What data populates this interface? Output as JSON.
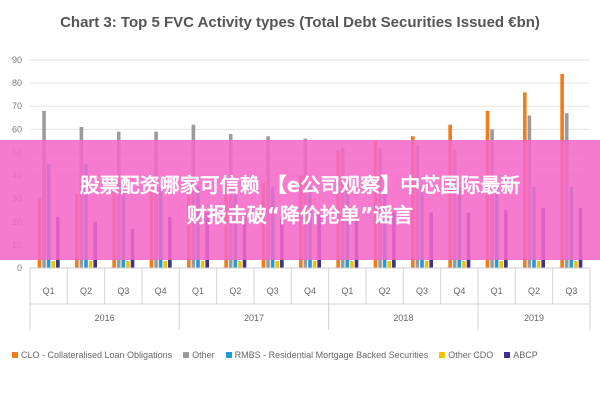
{
  "chart_data": {
    "type": "bar",
    "title": "Chart 3: Top 5 FVC Activity types (Total Debt Securities Issued €bn)",
    "ylim": [
      0,
      90
    ],
    "yticks": [
      0,
      10,
      20,
      30,
      40,
      50,
      60,
      70,
      80,
      90
    ],
    "grid": true,
    "legend_position": "bottom",
    "categories": [
      "Q1",
      "Q2",
      "Q3",
      "Q4",
      "Q1",
      "Q2",
      "Q3",
      "Q4",
      "Q1",
      "Q2",
      "Q3",
      "Q4",
      "Q1",
      "Q2",
      "Q3"
    ],
    "year_groups": [
      {
        "label": "2016",
        "start": 0,
        "count": 4
      },
      {
        "label": "2017",
        "start": 4,
        "count": 4
      },
      {
        "label": "2018",
        "start": 8,
        "count": 4
      },
      {
        "label": "2019",
        "start": 12,
        "count": 3
      }
    ],
    "series": [
      {
        "name": "CLO - Collateralised Loan Obligations",
        "color": "#f07d1a",
        "values": [
          30,
          32,
          33,
          35,
          34,
          36,
          37,
          40,
          51,
          55,
          57,
          62,
          68,
          76,
          84
        ]
      },
      {
        "name": "Other",
        "color": "#9b9b9b",
        "values": [
          68,
          61,
          59,
          59,
          62,
          58,
          57,
          56,
          52,
          52,
          53,
          51,
          60,
          66,
          67
        ]
      },
      {
        "name": "RMBS - Residential Mortgage Backed Securities",
        "color": "#1f9bd6",
        "values": [
          45,
          45,
          35,
          35,
          35,
          35,
          35,
          35,
          35,
          35,
          35,
          35,
          35,
          35,
          35
        ]
      },
      {
        "name": "Other CDO",
        "color": "#f2c200",
        "values": [
          3,
          3,
          3,
          3,
          3,
          3,
          3,
          3,
          3,
          3,
          3,
          3,
          3,
          3,
          3
        ]
      },
      {
        "name": "ABCP",
        "color": "#3c2f8f",
        "values": [
          22,
          20,
          17,
          22,
          24,
          23,
          22,
          23,
          24,
          24,
          24,
          24,
          25,
          26,
          26
        ]
      }
    ]
  },
  "overlay": {
    "line1": "股票配资哪家可信赖 【e公司观察】中芯国际最新",
    "line2": "财报击破“降价抢单”谣言"
  }
}
